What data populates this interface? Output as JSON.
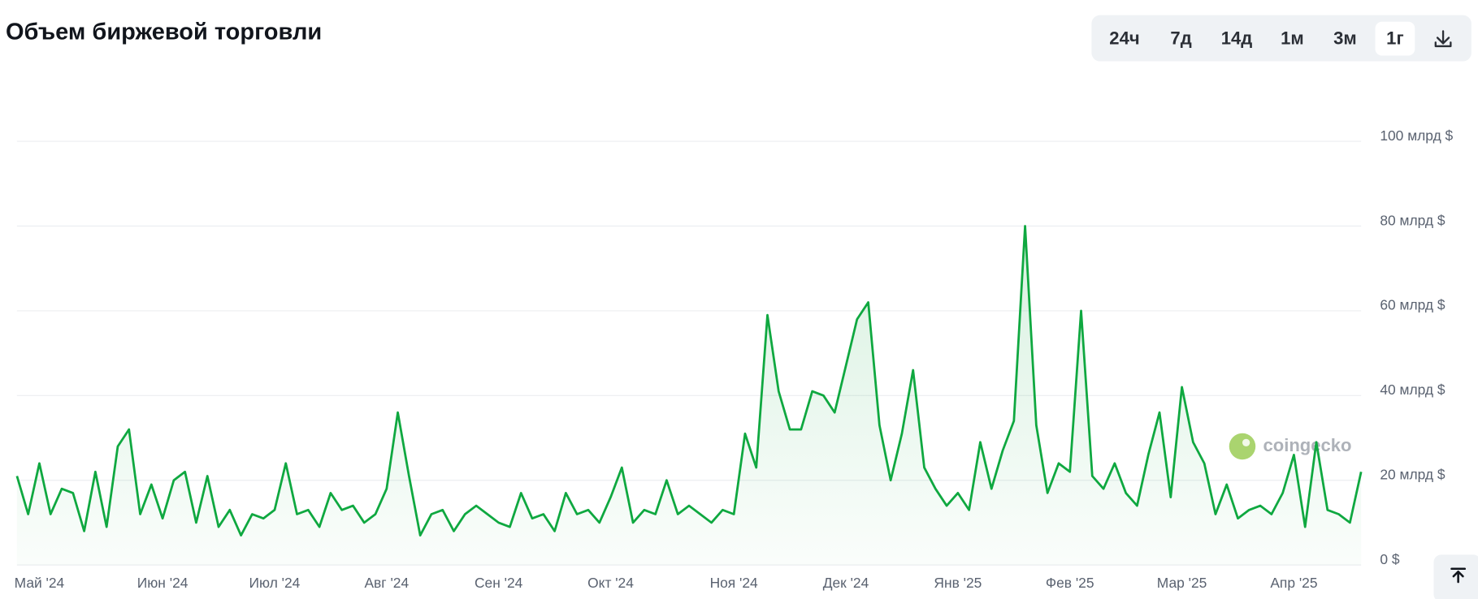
{
  "title": "Объем биржевой торговли",
  "buttons": [
    "24ч",
    "7д",
    "14д",
    "1м",
    "3м",
    "1г"
  ],
  "watermark": "coingecko",
  "chart_data": {
    "type": "line",
    "color": "#0fa840",
    "grid": true,
    "categories": [
      null,
      null,
      "Май '24",
      null,
      null,
      null,
      null,
      null,
      null,
      null,
      null,
      null,
      null,
      "Июн '24",
      null,
      null,
      null,
      null,
      null,
      null,
      null,
      null,
      null,
      "Июл '24",
      null,
      null,
      null,
      null,
      null,
      null,
      null,
      null,
      null,
      "Авг '24",
      null,
      null,
      null,
      null,
      null,
      null,
      null,
      null,
      null,
      "Сен '24",
      null,
      null,
      null,
      null,
      null,
      null,
      null,
      null,
      null,
      "Окт '24",
      null,
      null,
      null,
      null,
      null,
      null,
      null,
      null,
      null,
      null,
      "Ноя '24",
      null,
      null,
      null,
      null,
      null,
      null,
      null,
      null,
      null,
      "Дек '24",
      null,
      null,
      null,
      null,
      null,
      null,
      null,
      null,
      null,
      "Янв '25",
      null,
      null,
      null,
      null,
      null,
      null,
      null,
      null,
      null,
      "Фев '25",
      null,
      null,
      null,
      null,
      null,
      null,
      null,
      null,
      null,
      "Мар '25",
      null,
      null,
      null,
      null,
      null,
      null,
      null,
      null,
      null,
      "Апр '25",
      null,
      null,
      null,
      null,
      null,
      null
    ],
    "values": [
      21,
      12,
      24,
      12,
      18,
      17,
      8,
      22,
      9,
      28,
      32,
      12,
      19,
      11,
      20,
      22,
      10,
      21,
      9,
      13,
      7,
      12,
      11,
      13,
      24,
      12,
      13,
      9,
      17,
      13,
      14,
      10,
      12,
      18,
      36,
      21,
      7,
      12,
      13,
      8,
      12,
      14,
      12,
      10,
      9,
      17,
      11,
      12,
      8,
      17,
      12,
      13,
      10,
      16,
      23,
      10,
      13,
      12,
      20,
      12,
      14,
      12,
      10,
      13,
      12,
      31,
      23,
      59,
      41,
      32,
      32,
      41,
      40,
      36,
      47,
      58,
      62,
      33,
      20,
      31,
      46,
      23,
      18,
      14,
      17,
      13,
      29,
      18,
      27,
      34,
      80,
      33,
      17,
      24,
      22,
      60,
      21,
      18,
      24,
      17,
      14,
      26,
      36,
      16,
      42,
      29,
      24,
      12,
      19,
      11,
      13,
      14,
      12,
      17,
      26,
      9,
      29,
      13,
      12,
      10,
      22
    ],
    "ylim": [
      0,
      100
    ],
    "yticks": [
      {
        "value": 0,
        "label": "0 $"
      },
      {
        "value": 20,
        "label": "20 млрд $"
      },
      {
        "value": 40,
        "label": "40 млрд $"
      },
      {
        "value": 60,
        "label": "60 млрд $"
      },
      {
        "value": 80,
        "label": "80 млрд $"
      },
      {
        "value": 100,
        "label": "100 млрд $"
      }
    ]
  }
}
